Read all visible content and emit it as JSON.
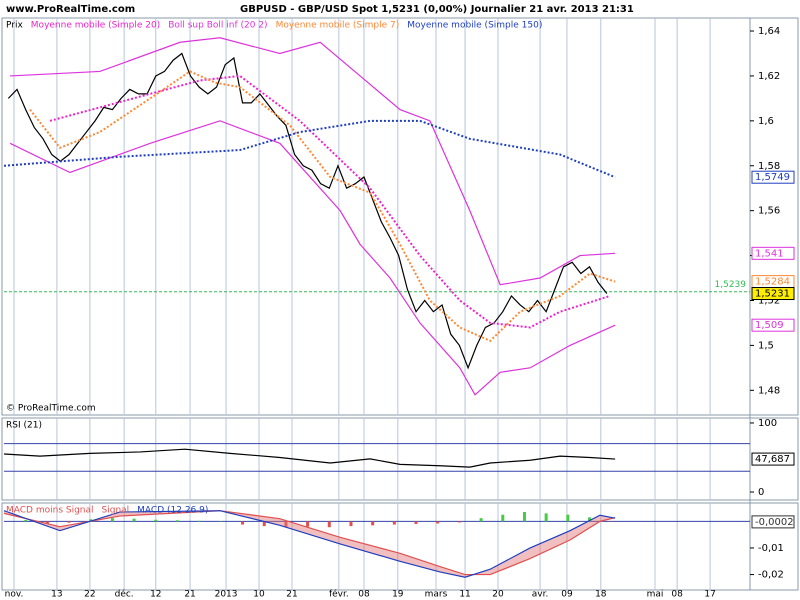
{
  "site": "www.ProRealTime.com",
  "chart_data": [
    {
      "type": "line",
      "title": "GBPUSD - GBP/USD Spot   1,5231 (0,00%)   Journalier  21 avr. 2013 21:31",
      "credit": "© ProRealTime.com",
      "xlim": [
        0,
        172
      ],
      "ylim": [
        1.469,
        1.6458
      ],
      "yticks": [
        {
          "value": 1.48,
          "label": "1,48"
        },
        {
          "value": 1.5,
          "label": "1,5"
        },
        {
          "value": 1.52,
          "label": "1,52"
        },
        {
          "value": 1.54,
          "label": "1,54"
        },
        {
          "value": 1.56,
          "label": "1,56"
        },
        {
          "value": 1.58,
          "label": "1,58"
        },
        {
          "value": 1.6,
          "label": "1,6"
        },
        {
          "value": 1.62,
          "label": "1,62"
        },
        {
          "value": 1.64,
          "label": "1,64"
        }
      ],
      "level": {
        "value": 1.5239,
        "label": "1,5239",
        "color": "#33bb55"
      },
      "series": [
        {
          "name": "Prix",
          "color": "#000000",
          "style": "solid",
          "x": [
            1,
            3,
            5,
            7,
            9,
            11,
            13,
            15,
            17,
            19,
            21,
            23,
            25,
            27,
            29,
            31,
            33,
            35,
            37,
            39,
            41,
            43,
            45,
            47,
            49,
            51,
            53,
            55,
            57,
            59,
            61,
            63,
            65,
            67,
            69,
            71,
            73,
            75,
            77,
            79,
            81,
            83,
            85,
            87,
            89,
            91,
            93,
            95,
            97,
            99,
            101,
            103,
            105,
            107,
            109,
            111,
            113,
            115,
            117,
            119,
            121,
            123,
            125,
            127,
            129,
            131,
            133,
            135,
            137,
            139
          ],
          "values": [
            1.61,
            1.614,
            1.605,
            1.597,
            1.592,
            1.585,
            1.582,
            1.585,
            1.59,
            1.595,
            1.6,
            1.606,
            1.605,
            1.61,
            1.614,
            1.612,
            1.612,
            1.62,
            1.622,
            1.627,
            1.63,
            1.62,
            1.615,
            1.612,
            1.615,
            1.625,
            1.628,
            1.608,
            1.608,
            1.612,
            1.607,
            1.602,
            1.598,
            1.585,
            1.58,
            1.578,
            1.572,
            1.57,
            1.58,
            1.57,
            1.572,
            1.575,
            1.565,
            1.555,
            1.548,
            1.54,
            1.525,
            1.515,
            1.52,
            1.515,
            1.518,
            1.505,
            1.5,
            1.49,
            1.5,
            1.508,
            1.51,
            1.515,
            1.522,
            1.518,
            1.515,
            1.52,
            1.515,
            1.525,
            1.535,
            1.537,
            1.532,
            1.535,
            1.528,
            1.5231
          ]
        },
        {
          "name": "Moyenne mobile (Simple 20)",
          "color": "#ee22cc",
          "style": "dotted",
          "x": [
            10.6,
            45.2,
            54.4,
            68.2,
            84.4,
            95.9,
            105.1,
            112.1,
            121.3,
            128.2,
            139.7
          ],
          "values": [
            1.6,
            1.618,
            1.62,
            1.6,
            1.57,
            1.54,
            1.52,
            1.51,
            1.508,
            1.515,
            1.522
          ]
        },
        {
          "name": "Boll sup Boll inf (20 2)",
          "color": "#dd33dd",
          "style": "solid",
          "x": [
            1.4,
            22.1,
            40.6,
            49.8,
            63.6,
            72.9,
            82.1,
            91.3,
            98.2,
            107.4,
            114.4,
            123.6,
            132.8,
            140.9
          ],
          "values": [
            1.62,
            1.622,
            1.635,
            1.637,
            1.63,
            1.635,
            1.62,
            1.605,
            1.6,
            1.56,
            1.527,
            1.53,
            1.54,
            1.541
          ]
        },
        {
          "color": "#dd33dd",
          "style": "solid",
          "x": [
            1.4,
            15.2,
            33.7,
            49.8,
            63.6,
            77.5,
            82.1,
            89,
            95.9,
            105.1,
            108.6,
            114.4,
            121.3,
            130.5,
            140.9
          ],
          "values": [
            1.59,
            1.577,
            1.59,
            1.6,
            1.59,
            1.56,
            1.545,
            1.53,
            1.51,
            1.49,
            1.478,
            1.488,
            1.49,
            1.5,
            1.509
          ]
        },
        {
          "name": "Moyenne mobile (Simple 7)",
          "color": "#ff8833",
          "style": "dotted",
          "x": [
            6,
            12.9,
            22.1,
            33.7,
            42.9,
            48.7,
            54.4,
            65.9,
            75.2,
            84.4,
            91.3,
            98.2,
            105.1,
            112.1,
            119,
            128.2,
            135.1,
            140.9
          ],
          "values": [
            1.605,
            1.588,
            1.595,
            1.61,
            1.622,
            1.617,
            1.615,
            1.598,
            1.575,
            1.568,
            1.545,
            1.52,
            1.508,
            1.502,
            1.515,
            1.522,
            1.532,
            1.5284
          ]
        },
        {
          "name": "Moyenne mobile (Simple 150)",
          "color": "#1f3fbf",
          "style": "dotted",
          "x": [
            0,
            26.7,
            54.4,
            68.2,
            84.4,
            95.9,
            107.4,
            128.2,
            140.9
          ],
          "values": [
            1.58,
            1.584,
            1.587,
            1.595,
            1.6,
            1.6,
            1.592,
            1.585,
            1.5749
          ]
        }
      ],
      "markers": [
        {
          "value": 1.5749,
          "label": "1,5749",
          "color": "#1f3fbf"
        },
        {
          "value": 1.541,
          "label": "1,541",
          "color": "#dd33dd"
        },
        {
          "value": 1.5284,
          "label": "1,5284",
          "color": "#ff8833"
        },
        {
          "value": 1.5231,
          "label": "1,5231",
          "color": "#000000",
          "bg": "#ffee00"
        },
        {
          "value": 1.509,
          "label": "1,509",
          "color": "#dd33dd"
        }
      ]
    },
    {
      "type": "line",
      "title": "RSI (21)",
      "xlim": [
        0,
        172
      ],
      "ylim": [
        -11.6,
        107.2
      ],
      "yticks": [
        0,
        100
      ],
      "levels": [
        70,
        30
      ],
      "series": [
        {
          "color": "#000000",
          "style": "solid",
          "x": [
            0,
            8.3,
            19.8,
            31.4,
            41.7,
            52.1,
            63.6,
            75.2,
            84.4,
            91.3,
            100.5,
            107.4,
            112.1,
            121.3,
            128.2,
            135.1,
            140.9
          ],
          "values": [
            55,
            52,
            56,
            58,
            62,
            56,
            50,
            42,
            48,
            40,
            38,
            36,
            42,
            46,
            52,
            50,
            47.687
          ]
        }
      ],
      "markers": [
        {
          "value": 47.687,
          "label": "47,687",
          "color": "#000000"
        }
      ]
    },
    {
      "type": "macd",
      "xlim": [
        0,
        172
      ],
      "ylim": [
        -0.0258,
        0.0069
      ],
      "yticks": [
        {
          "value": -0.01,
          "label": "-0,01"
        },
        {
          "value": -0.02,
          "label": "-0,02"
        }
      ],
      "levels": [
        0
      ],
      "xticks": [
        {
          "value": 2.3,
          "label": "nov."
        },
        {
          "value": 12.2,
          "label": "13"
        },
        {
          "value": 19.8,
          "label": "22"
        },
        {
          "value": 27.7,
          "label": "déc."
        },
        {
          "value": 35,
          "label": "12"
        },
        {
          "value": 42.9,
          "label": "21"
        },
        {
          "value": 51.2,
          "label": "2013"
        },
        {
          "value": 58.8,
          "label": "10"
        },
        {
          "value": 66.4,
          "label": "21"
        },
        {
          "value": 77.2,
          "label": "févr."
        },
        {
          "value": 83,
          "label": "08"
        },
        {
          "value": 90.8,
          "label": "19"
        },
        {
          "value": 99.6,
          "label": "mars"
        },
        {
          "value": 106.3,
          "label": "11"
        },
        {
          "value": 113.9,
          "label": "20"
        },
        {
          "value": 123.6,
          "label": "avr."
        },
        {
          "value": 129.8,
          "label": "09"
        },
        {
          "value": 137.6,
          "label": "18"
        },
        {
          "value": 150.1,
          "label": "mai"
        },
        {
          "value": 155.2,
          "label": "08"
        },
        {
          "value": 162.8,
          "label": "17"
        }
      ],
      "histogram": {
        "name": "MACD moins Signal",
        "color": "#e05050",
        "up_color": "#44cc44",
        "x": [
          5,
          10,
          15,
          20,
          25,
          30,
          35,
          40,
          45,
          50,
          55,
          60,
          65,
          70,
          75,
          80,
          85,
          90,
          95,
          100,
          105,
          110,
          115,
          120,
          125,
          130,
          135,
          140
        ],
        "values": [
          0.0005,
          -0.0008,
          -0.0005,
          0.0008,
          0.0012,
          0.001,
          0.0006,
          0.0004,
          0.0002,
          0,
          -0.0012,
          -0.0018,
          -0.0022,
          -0.002,
          -0.0022,
          -0.0018,
          -0.0015,
          -0.0012,
          -0.001,
          -0.0008,
          -0.0004,
          0.0012,
          0.0025,
          0.0035,
          0.003,
          0.0025,
          0.0015,
          -0.0002
        ]
      },
      "series": [
        {
          "name": "Signal",
          "color": "#e05050",
          "style": "solid",
          "x": [
            0,
            12.9,
            26.7,
            49.8,
            63.6,
            77.5,
            91.3,
            100.5,
            106.3,
            112.1,
            121.3,
            130.5,
            137.4,
            140.9
          ],
          "values": [
            0.003,
            -0.002,
            0.002,
            0.004,
            0.001,
            -0.006,
            -0.012,
            -0.017,
            -0.02,
            -0.02,
            -0.014,
            -0.007,
            0,
            0.0014
          ]
        },
        {
          "name": "MACD (12 26 9)",
          "color": "#1f3fbf",
          "style": "solid",
          "x": [
            0,
            12.9,
            26.7,
            49.8,
            63.6,
            77.5,
            91.3,
            100.5,
            106.3,
            112.1,
            121.3,
            130.5,
            137.4,
            140.9
          ],
          "values": [
            0.004,
            -0.0035,
            0.0035,
            0.004,
            -0.0015,
            -0.0085,
            -0.015,
            -0.019,
            -0.021,
            -0.018,
            -0.01,
            -0.0035,
            0.0023,
            0.0012
          ]
        }
      ],
      "markers": [
        {
          "value": -0.0002,
          "label": "-0,0002",
          "color": "#333333"
        }
      ]
    }
  ]
}
